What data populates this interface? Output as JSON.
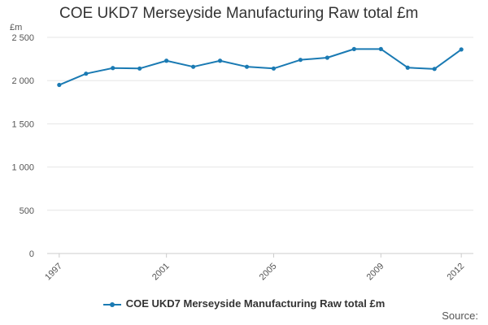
{
  "chart_data": {
    "type": "line",
    "title": "COE UKD7 Merseyside Manufacturing Raw total £m",
    "ylabel": "£m",
    "xlabel": "",
    "ylim": [
      0,
      2500
    ],
    "yticks": [
      0,
      500,
      1000,
      1500,
      2000,
      2500
    ],
    "ytick_labels": [
      "0",
      "500",
      "1 000",
      "1 500",
      "2 000",
      "2 500"
    ],
    "x": [
      1997,
      1998,
      1999,
      2000,
      2001,
      2002,
      2003,
      2004,
      2005,
      2006,
      2007,
      2008,
      2009,
      2010,
      2011,
      2012
    ],
    "xtick_labels": [
      "1997",
      "2001",
      "2005",
      "2009",
      "2012"
    ],
    "series": [
      {
        "name": "COE UKD7 Merseyside Manufacturing Raw total £m",
        "color": "#1a7ab3",
        "values": [
          1950,
          2080,
          2145,
          2140,
          2230,
          2160,
          2230,
          2160,
          2140,
          2240,
          2265,
          2365,
          2365,
          2150,
          2135,
          2360
        ]
      }
    ],
    "grid": true,
    "legend": "bottom"
  },
  "footer": {
    "source": "Source:"
  }
}
